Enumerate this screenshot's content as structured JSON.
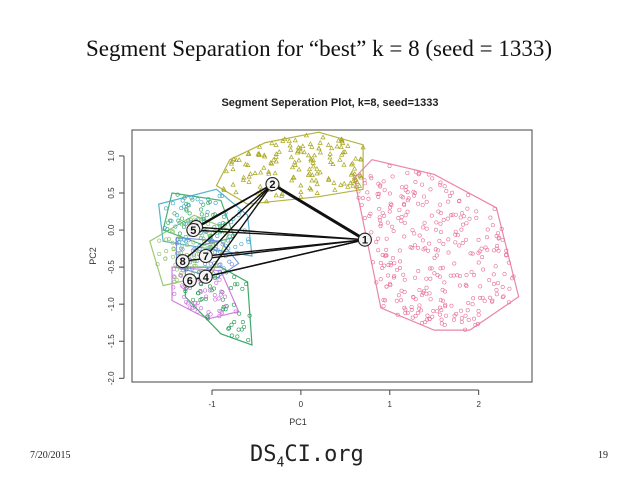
{
  "slide": {
    "title": "Segment Separation for “best” k = 8 (seed = 1333)",
    "date": "7/20/2015",
    "page_number": "19",
    "logo": {
      "prefix": "DS",
      "sub": "4",
      "suffix": "CI.org"
    }
  },
  "chart_data": {
    "type": "scatter",
    "title": "Segment Seperation Plot, k=8, seed=1333",
    "xlabel": "PC1",
    "ylabel": "PC2",
    "xlim": [
      -1.9,
      2.6
    ],
    "ylim": [
      -2.05,
      1.35
    ],
    "xticks": [
      -1,
      0,
      1,
      2
    ],
    "yticks": [
      -2.0,
      -1.5,
      -1.0,
      -0.5,
      0.0,
      0.5,
      1.0
    ],
    "xtick_labels": [
      "-1",
      "0",
      "1",
      "2"
    ],
    "ytick_labels": [
      "-2.0",
      "-1.5",
      "-1.0",
      "-0.5",
      "0.0",
      "0.5",
      "1.0"
    ],
    "clusters": [
      {
        "id": "1",
        "center": [
          0.72,
          -0.13
        ],
        "color": "#e8719a",
        "hull": [
          [
            0.8,
            0.95
          ],
          [
            1.5,
            0.75
          ],
          [
            2.2,
            0.3
          ],
          [
            2.45,
            -0.9
          ],
          [
            1.9,
            -1.35
          ],
          [
            1.5,
            -1.35
          ],
          [
            0.9,
            -1.05
          ],
          [
            0.6,
            0.7
          ]
        ]
      },
      {
        "id": "2",
        "center": [
          -0.32,
          0.62
        ],
        "color": "#a8a620",
        "hull": [
          [
            -0.8,
            0.95
          ],
          [
            -0.4,
            1.18
          ],
          [
            0.2,
            1.32
          ],
          [
            0.7,
            1.15
          ],
          [
            0.7,
            0.55
          ],
          [
            0.2,
            0.45
          ],
          [
            -0.6,
            0.35
          ],
          [
            -0.95,
            0.6
          ]
        ]
      },
      {
        "id": "3",
        "center": [
          -1.18,
          0.04
        ],
        "color": "#2aa55a",
        "hull": [
          [
            -1.45,
            0.5
          ],
          [
            -0.9,
            0.4
          ],
          [
            -0.75,
            -0.1
          ],
          [
            -1.1,
            -0.2
          ],
          [
            -1.55,
            0.0
          ]
        ]
      },
      {
        "id": "4",
        "center": [
          -1.07,
          -0.63
        ],
        "color": "#1e9a50",
        "hull": [
          [
            -1.3,
            -0.5
          ],
          [
            -0.9,
            -0.5
          ],
          [
            -0.6,
            -0.7
          ],
          [
            -0.55,
            -1.55
          ],
          [
            -0.9,
            -1.4
          ],
          [
            -1.3,
            -0.9
          ]
        ]
      },
      {
        "id": "5",
        "center": [
          -1.21,
          0.0
        ],
        "color": "#3aa7c8",
        "hull": [
          [
            -1.6,
            0.35
          ],
          [
            -0.95,
            0.55
          ],
          [
            -0.6,
            0.2
          ],
          [
            -0.55,
            -0.35
          ],
          [
            -1.05,
            -0.25
          ],
          [
            -1.55,
            -0.15
          ]
        ]
      },
      {
        "id": "6",
        "center": [
          -1.25,
          -0.68
        ],
        "color": "#c86dd8",
        "hull": [
          [
            -1.45,
            -0.5
          ],
          [
            -0.9,
            -0.55
          ],
          [
            -0.7,
            -1.1
          ],
          [
            -1.05,
            -1.2
          ],
          [
            -1.45,
            -0.95
          ]
        ]
      },
      {
        "id": "7",
        "center": [
          -1.07,
          -0.35
        ],
        "color": "#6a8ad8",
        "hull": [
          [
            -1.4,
            -0.1
          ],
          [
            -0.9,
            -0.15
          ],
          [
            -0.7,
            -0.45
          ],
          [
            -0.95,
            -0.65
          ],
          [
            -1.4,
            -0.5
          ]
        ]
      },
      {
        "id": "8",
        "center": [
          -1.33,
          -0.42
        ],
        "color": "#8cc060",
        "hull": [
          [
            -1.7,
            -0.15
          ],
          [
            -1.2,
            0.2
          ],
          [
            -0.8,
            0.0
          ],
          [
            -1.0,
            -0.6
          ],
          [
            -1.55,
            -0.75
          ]
        ]
      }
    ],
    "links_from_1": [
      "2",
      "3",
      "4",
      "5",
      "6",
      "7",
      "8"
    ],
    "links_from_2": [
      "3",
      "4",
      "5",
      "7",
      "8"
    ]
  }
}
